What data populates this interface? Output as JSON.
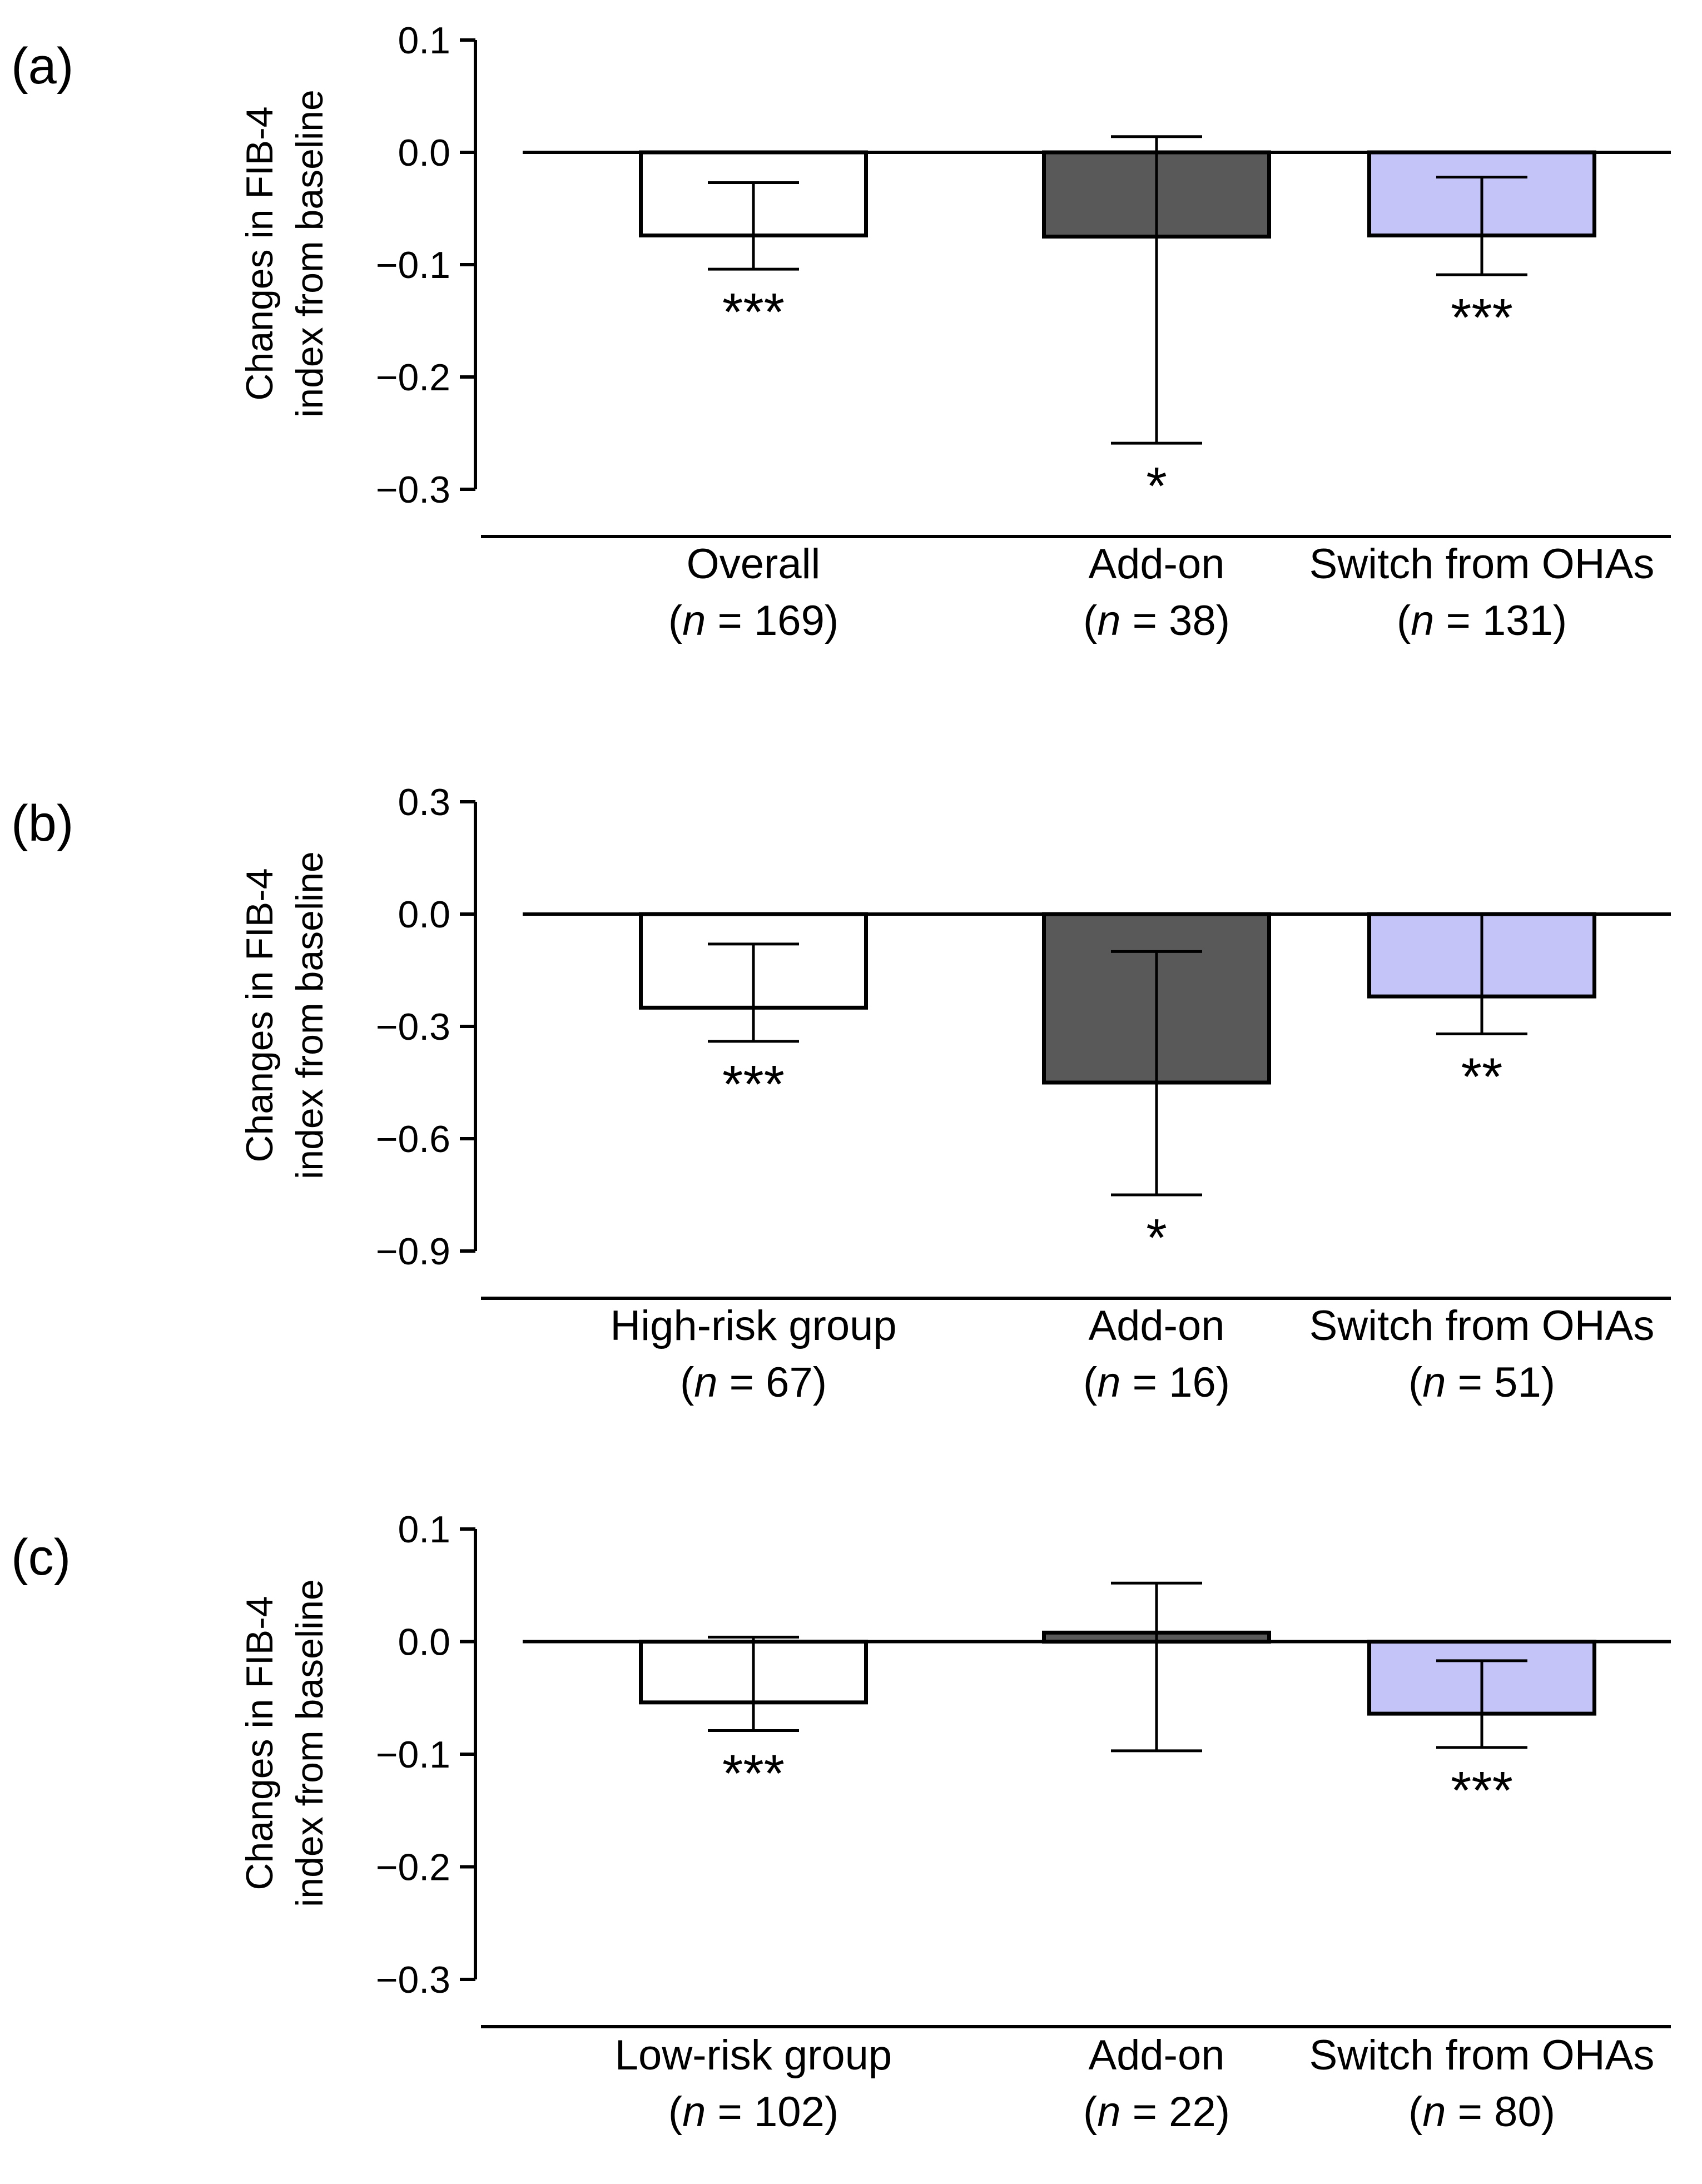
{
  "chart_data": [
    {
      "panel": "(a)",
      "type": "bar",
      "ylabel": [
        "Changes in FIB-4",
        "index from baseline"
      ],
      "ylim": [
        -0.3,
        0.1
      ],
      "ticks": [
        0.1,
        0.0,
        -0.1,
        -0.2,
        -0.3
      ],
      "tick_labels": [
        "0.1",
        "0.0",
        "−0.1",
        "−0.2",
        "−0.3"
      ],
      "categories": [
        {
          "name": "Overall",
          "n": "169"
        },
        {
          "name": "Add-on",
          "n": "38"
        },
        {
          "name": "Switch from OHAs",
          "n": "131"
        }
      ],
      "values": [
        -0.074,
        -0.075,
        -0.074
      ],
      "err_low": [
        -0.104,
        -0.259,
        -0.109
      ],
      "err_high": [
        -0.027,
        0.014,
        -0.022
      ],
      "significance": [
        "***",
        "*",
        "***"
      ],
      "colors": [
        "#ffffff",
        "#595959",
        "#c4c4f8"
      ]
    },
    {
      "panel": "(b)",
      "type": "bar",
      "ylabel": [
        "Changes in FIB-4",
        "index from baseline"
      ],
      "ylim": [
        -0.9,
        0.3
      ],
      "ticks": [
        0.3,
        0.0,
        -0.3,
        -0.6,
        -0.9
      ],
      "tick_labels": [
        "0.3",
        "0.0",
        "−0.3",
        "−0.6",
        "−0.9"
      ],
      "categories": [
        {
          "name": "High-risk group",
          "n": "67"
        },
        {
          "name": "Add-on",
          "n": "16"
        },
        {
          "name": "Switch from OHAs",
          "n": "51"
        }
      ],
      "values": [
        -0.25,
        -0.45,
        -0.22
      ],
      "err_low": [
        -0.34,
        -0.75,
        -0.32
      ],
      "err_high": [
        -0.08,
        -0.1,
        0.0
      ],
      "significance": [
        "***",
        "*",
        "**"
      ],
      "colors": [
        "#ffffff",
        "#595959",
        "#c4c4f8"
      ]
    },
    {
      "panel": "(c)",
      "type": "bar",
      "ylabel": [
        "Changes in FIB-4",
        "index from baseline"
      ],
      "ylim": [
        -0.3,
        0.1
      ],
      "ticks": [
        0.1,
        0.0,
        -0.1,
        -0.2,
        -0.3
      ],
      "tick_labels": [
        "0.1",
        "0.0",
        "−0.1",
        "−0.2",
        "−0.3"
      ],
      "categories": [
        {
          "name": "Low-risk group",
          "n": "102"
        },
        {
          "name": "Add-on",
          "n": "22"
        },
        {
          "name": "Switch from OHAs",
          "n": "80"
        }
      ],
      "values": [
        -0.054,
        0.008,
        -0.064
      ],
      "err_low": [
        -0.079,
        -0.097,
        -0.094
      ],
      "err_high": [
        0.004,
        0.052,
        -0.017
      ],
      "significance": [
        "***",
        "",
        "***"
      ],
      "colors": [
        "#ffffff",
        "#595959",
        "#c4c4f8"
      ]
    }
  ]
}
